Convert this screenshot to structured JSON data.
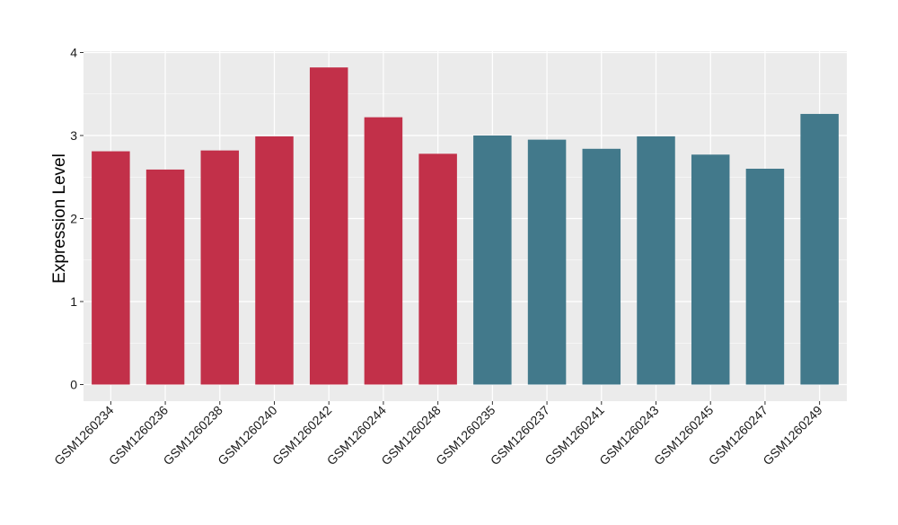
{
  "chart_data": {
    "type": "bar",
    "ylabel": "Expression Level",
    "xlabel": "",
    "ylim": [
      0,
      4
    ],
    "yticks": [
      0,
      1,
      2,
      3,
      4
    ],
    "grid": true,
    "panel_background": "#ebebeb",
    "grid_color": "#ffffff",
    "categories": [
      "GSM1260234",
      "GSM1260236",
      "GSM1260238",
      "GSM1260240",
      "GSM1260242",
      "GSM1260244",
      "GSM1260248",
      "GSM1260235",
      "GSM1260237",
      "GSM1260241",
      "GSM1260243",
      "GSM1260245",
      "GSM1260247",
      "GSM1260249"
    ],
    "values": [
      2.81,
      2.59,
      2.82,
      2.99,
      3.82,
      3.22,
      2.78,
      3.0,
      2.95,
      2.84,
      2.99,
      2.77,
      2.6,
      3.26
    ],
    "groups": [
      0,
      0,
      0,
      0,
      0,
      0,
      0,
      1,
      1,
      1,
      1,
      1,
      1,
      1
    ],
    "group_colors": [
      "#c23049",
      "#42798b"
    ]
  }
}
